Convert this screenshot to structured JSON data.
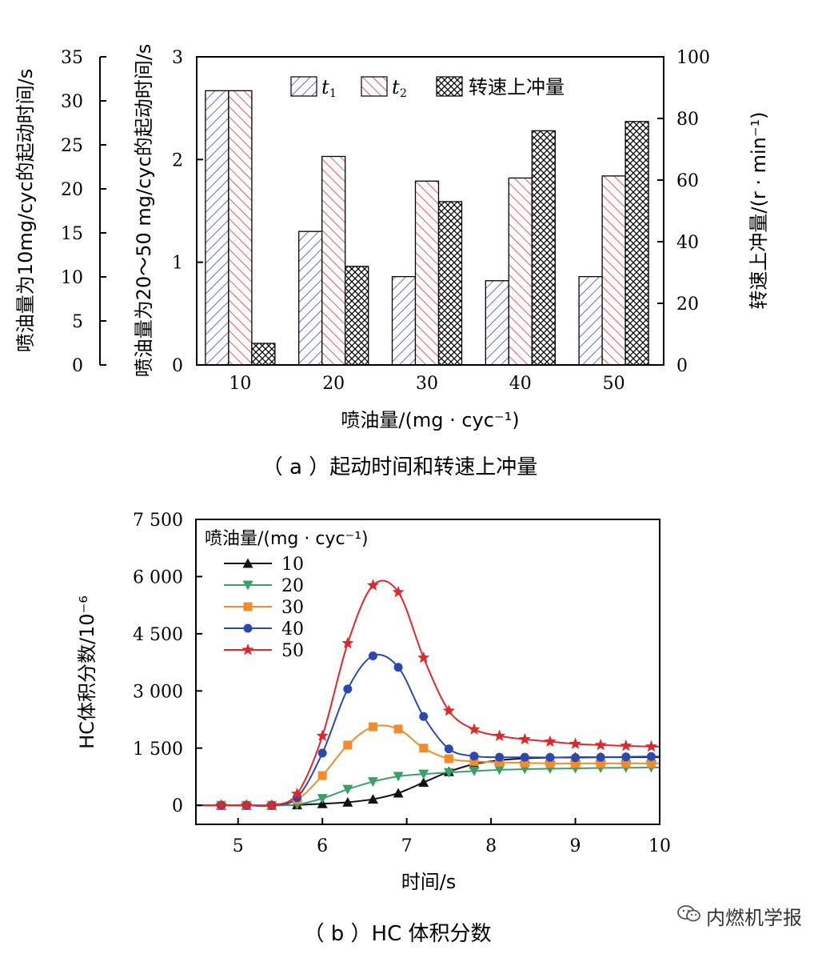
{
  "chart_data": [
    {
      "type": "bar",
      "caption": "（ a ）起动时间和转速上冲量",
      "xlabel": "喷油量/(mg · cyc⁻¹)",
      "ylabel_left_outer": "喷油量为10mg/cyc的起动时间/s",
      "ylabel_left_inner": "喷油量为20～50 mg/cyc的起动时间/s",
      "ylabel_right": "转速上冲量/(r · min⁻¹)",
      "categories": [
        "10",
        "20",
        "30",
        "40",
        "50"
      ],
      "ylim_left_outer": [
        0,
        35
      ],
      "ylim_left_inner": [
        0,
        3
      ],
      "ylim_right": [
        0,
        100
      ],
      "ticks_left_outer": [
        "0",
        "5",
        "10",
        "15",
        "20",
        "25",
        "30",
        "35"
      ],
      "ticks_left_inner": [
        "0",
        "1",
        "2",
        "3"
      ],
      "ticks_right": [
        "0",
        "20",
        "40",
        "60",
        "80",
        "100"
      ],
      "legend": [
        "t1",
        "t2",
        "转速上冲量"
      ],
      "legend_sub": [
        "1",
        "2"
      ],
      "series": [
        {
          "name": "t1",
          "axis": "inner",
          "pattern": "diag-blue",
          "color": "#3a4f9a",
          "values": [
            2.67,
            1.3,
            0.86,
            0.82,
            0.86
          ]
        },
        {
          "name": "t2",
          "axis": "inner",
          "pattern": "diag-red",
          "color": "#e03030",
          "values": [
            2.67,
            2.03,
            1.79,
            1.82,
            1.84
          ]
        },
        {
          "name": "转速上冲量",
          "axis": "right",
          "pattern": "cross-black",
          "color": "#000000",
          "values": [
            7,
            32,
            53,
            76,
            79
          ]
        }
      ]
    },
    {
      "type": "line",
      "caption": "（ b ）HC 体积分数",
      "xlabel": "时间/s",
      "ylabel": "HC体积分数/10⁻⁶",
      "xlim": [
        4.5,
        10
      ],
      "ylim": [
        -500,
        7500
      ],
      "xticks": [
        "5",
        "6",
        "7",
        "8",
        "9",
        "10"
      ],
      "yticks": [
        "0",
        "1 500",
        "3 000",
        "4 500",
        "6 000",
        "7 500"
      ],
      "legend_title": "喷油量/(mg · cyc⁻¹)",
      "x": [
        4.5,
        4.8,
        5.1,
        5.4,
        5.7,
        6.0,
        6.3,
        6.6,
        6.9,
        7.2,
        7.5,
        7.8,
        8.1,
        8.4,
        8.7,
        9.0,
        9.3,
        9.6,
        9.9,
        10.0
      ],
      "series": [
        {
          "name": "10",
          "color": "#111111",
          "marker": "triangle-up",
          "values": [
            0,
            0,
            0,
            0,
            10,
            40,
            80,
            160,
            320,
            600,
            880,
            1080,
            1180,
            1230,
            1250,
            1260,
            1260,
            1260,
            1260,
            1260
          ]
        },
        {
          "name": "20",
          "color": "#3aa06a",
          "marker": "triangle-down",
          "values": [
            0,
            0,
            0,
            0,
            20,
            180,
            420,
            620,
            760,
            820,
            860,
            900,
            930,
            950,
            960,
            970,
            980,
            985,
            990,
            990
          ]
        },
        {
          "name": "30",
          "color": "#f08c2a",
          "marker": "square",
          "values": [
            0,
            0,
            0,
            0,
            150,
            780,
            1580,
            2060,
            2000,
            1500,
            1220,
            1150,
            1130,
            1110,
            1100,
            1100,
            1100,
            1100,
            1100,
            1100
          ]
        },
        {
          "name": "40",
          "color": "#2a48b0",
          "marker": "circle",
          "values": [
            0,
            0,
            0,
            0,
            200,
            1370,
            3050,
            3920,
            3620,
            2330,
            1480,
            1290,
            1260,
            1260,
            1255,
            1250,
            1260,
            1270,
            1280,
            1280
          ]
        },
        {
          "name": "50",
          "color": "#e0282a",
          "marker": "star",
          "values": [
            0,
            0,
            0,
            0,
            300,
            1820,
            4250,
            5770,
            5590,
            3870,
            2480,
            1990,
            1820,
            1730,
            1670,
            1610,
            1580,
            1560,
            1540,
            1540
          ]
        }
      ]
    }
  ],
  "watermark": {
    "text": "内燃机学报",
    "icon": "wechat-icon"
  }
}
